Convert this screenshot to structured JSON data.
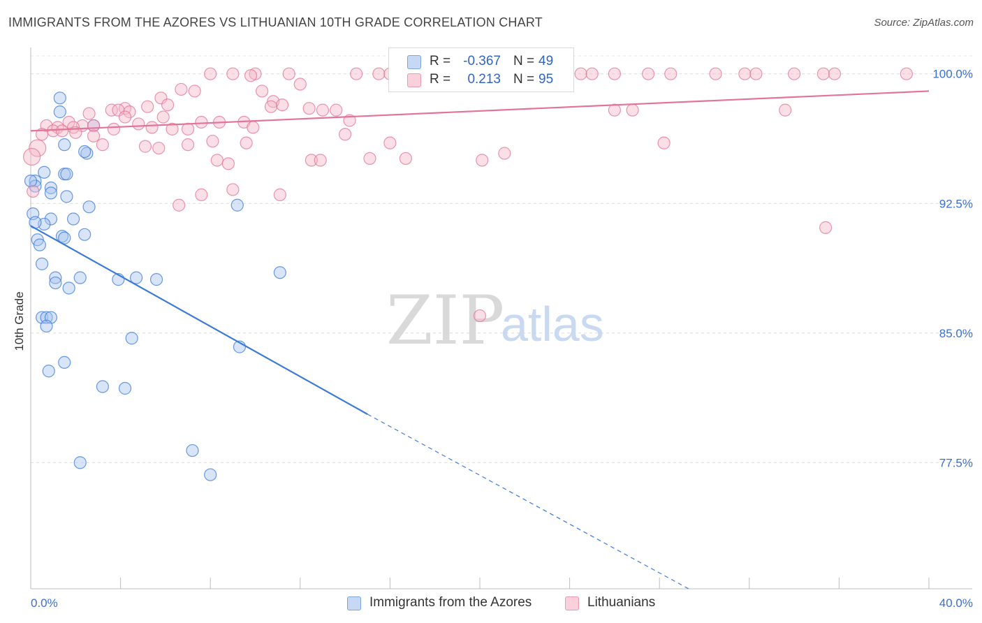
{
  "title": "IMMIGRANTS FROM THE AZORES VS LITHUANIAN 10TH GRADE CORRELATION CHART",
  "source": "Source: ZipAtlas.com",
  "watermark": {
    "zip": "ZIP",
    "atlas": "atlas"
  },
  "legend_top": [
    {
      "r_label": "R =",
      "r_value": "-0.367",
      "n_label": "N =",
      "n_value": "49",
      "color": "#a8c4ee"
    },
    {
      "r_label": "R =",
      "r_value": "0.213",
      "n_label": "N =",
      "n_value": "95",
      "color": "#f5b8ca"
    }
  ],
  "legend_bottom": [
    {
      "label": "Immigrants from the Azores",
      "color": "#a8c4ee"
    },
    {
      "label": "Lithuanians",
      "color": "#f5b8ca"
    }
  ],
  "chart_data": {
    "type": "scatter",
    "title": "IMMIGRANTS FROM THE AZORES VS LITHUANIAN 10TH GRADE CORRELATION CHART",
    "xlabel": "",
    "ylabel": "10th Grade",
    "xlim": [
      0,
      40
    ],
    "ylim": [
      70.2,
      101.2
    ],
    "x_tick_labels": [
      "0.0%",
      "40.0%"
    ],
    "y_tick_labels": [
      "100.0%",
      "92.5%",
      "85.0%",
      "77.5%"
    ],
    "y_ticks": [
      100.0,
      92.5,
      85.0,
      77.5
    ],
    "grid": true,
    "series": [
      {
        "name": "Immigrants from the Azores",
        "color": "#3b7ad8",
        "fill": "#a8c4ee",
        "trend": {
          "x0": 0.0,
          "y0": 91.2,
          "x1": 15.0,
          "y1": 80.3,
          "dash_to_x": 29.3,
          "dash_to_y": 70.2
        },
        "points": [
          [
            1.3,
            98.6
          ],
          [
            1.3,
            97.8
          ],
          [
            2.8,
            97.0
          ],
          [
            1.5,
            95.9
          ],
          [
            2.5,
            95.4
          ],
          [
            2.4,
            95.5
          ],
          [
            0.6,
            94.3
          ],
          [
            1.5,
            94.2
          ],
          [
            1.6,
            94.2
          ],
          [
            0.2,
            93.8
          ],
          [
            0.2,
            93.5
          ],
          [
            0.9,
            93.4
          ],
          [
            0.9,
            93.1
          ],
          [
            1.6,
            92.9
          ],
          [
            2.6,
            92.3
          ],
          [
            9.2,
            92.4
          ],
          [
            0.1,
            91.9
          ],
          [
            0.9,
            91.6
          ],
          [
            1.9,
            91.6
          ],
          [
            0.6,
            91.3
          ],
          [
            0.2,
            91.4
          ],
          [
            2.4,
            90.7
          ],
          [
            1.4,
            90.6
          ],
          [
            1.5,
            90.5
          ],
          [
            0.3,
            90.4
          ],
          [
            0.4,
            90.1
          ],
          [
            0.5,
            89.0
          ],
          [
            3.9,
            88.1
          ],
          [
            4.7,
            88.2
          ],
          [
            5.6,
            88.1
          ],
          [
            2.2,
            88.2
          ],
          [
            1.1,
            88.2
          ],
          [
            1.1,
            87.9
          ],
          [
            1.7,
            87.6
          ],
          [
            11.1,
            88.5
          ],
          [
            0.5,
            85.9
          ],
          [
            0.7,
            85.9
          ],
          [
            0.9,
            85.9
          ],
          [
            0.7,
            85.4
          ],
          [
            4.5,
            84.7
          ],
          [
            9.3,
            84.2
          ],
          [
            1.5,
            83.3
          ],
          [
            0.8,
            82.8
          ],
          [
            3.2,
            81.9
          ],
          [
            4.2,
            81.8
          ],
          [
            7.2,
            78.2
          ],
          [
            2.2,
            77.5
          ],
          [
            8.0,
            76.8
          ],
          [
            0.0,
            93.8
          ]
        ]
      },
      {
        "name": "Lithuanians",
        "color": "#e27399",
        "fill": "#f5b8ca",
        "trend": {
          "x0": 0.0,
          "y0": 96.7,
          "x1": 40.0,
          "y1": 99.0
        },
        "points": [
          [
            8.0,
            100.0
          ],
          [
            9.0,
            100.0
          ],
          [
            10.0,
            100.0
          ],
          [
            11.5,
            100.0
          ],
          [
            14.5,
            100.0
          ],
          [
            15.5,
            100.0
          ],
          [
            16.0,
            100.0
          ],
          [
            17.0,
            100.0
          ],
          [
            18.0,
            100.0
          ],
          [
            19.0,
            100.0
          ],
          [
            22.0,
            100.0
          ],
          [
            23.5,
            100.0
          ],
          [
            24.5,
            100.0
          ],
          [
            25.0,
            100.0
          ],
          [
            26.0,
            100.0
          ],
          [
            27.5,
            100.0
          ],
          [
            28.5,
            100.0
          ],
          [
            30.5,
            100.0
          ],
          [
            31.8,
            100.0
          ],
          [
            32.3,
            100.0
          ],
          [
            34.0,
            100.0
          ],
          [
            35.3,
            100.0
          ],
          [
            35.8,
            100.0
          ],
          [
            39.0,
            100.0
          ],
          [
            9.8,
            99.9
          ],
          [
            12.0,
            99.4
          ],
          [
            6.7,
            99.1
          ],
          [
            7.3,
            99.0
          ],
          [
            10.3,
            99.0
          ],
          [
            5.8,
            98.6
          ],
          [
            10.8,
            98.4
          ],
          [
            11.2,
            98.2
          ],
          [
            6.1,
            98.2
          ],
          [
            5.2,
            98.1
          ],
          [
            4.2,
            98.0
          ],
          [
            10.7,
            98.1
          ],
          [
            3.6,
            97.9
          ],
          [
            3.9,
            97.9
          ],
          [
            4.4,
            97.8
          ],
          [
            2.6,
            97.7
          ],
          [
            12.4,
            98.0
          ],
          [
            13.0,
            97.9
          ],
          [
            13.6,
            97.9
          ],
          [
            26.0,
            97.9
          ],
          [
            26.8,
            97.9
          ],
          [
            33.6,
            97.9
          ],
          [
            4.2,
            97.5
          ],
          [
            5.9,
            97.5
          ],
          [
            14.2,
            97.3
          ],
          [
            8.4,
            97.2
          ],
          [
            9.5,
            97.2
          ],
          [
            7.6,
            97.2
          ],
          [
            4.8,
            97.1
          ],
          [
            1.7,
            97.2
          ],
          [
            2.3,
            97.0
          ],
          [
            1.2,
            96.9
          ],
          [
            2.8,
            97.0
          ],
          [
            1.9,
            96.9
          ],
          [
            0.7,
            97.0
          ],
          [
            3.7,
            96.8
          ],
          [
            1.0,
            96.7
          ],
          [
            1.4,
            96.7
          ],
          [
            2.0,
            96.6
          ],
          [
            9.9,
            96.9
          ],
          [
            5.4,
            96.9
          ],
          [
            6.3,
            96.8
          ],
          [
            7.0,
            96.8
          ],
          [
            0.5,
            96.5
          ],
          [
            2.8,
            96.4
          ],
          [
            14.0,
            96.5
          ],
          [
            8.1,
            96.1
          ],
          [
            3.2,
            95.9
          ],
          [
            5.1,
            95.8
          ],
          [
            5.7,
            95.7
          ],
          [
            7.0,
            95.9
          ],
          [
            9.6,
            96.0
          ],
          [
            16.0,
            96.0
          ],
          [
            28.2,
            96.0
          ],
          [
            0.3,
            95.7
          ],
          [
            21.1,
            95.4
          ],
          [
            20.1,
            95.0
          ],
          [
            12.5,
            95.0
          ],
          [
            12.9,
            95.0
          ],
          [
            15.1,
            95.1
          ],
          [
            16.7,
            95.1
          ],
          [
            8.3,
            95.0
          ],
          [
            8.8,
            94.8
          ],
          [
            9.0,
            93.3
          ],
          [
            7.6,
            93.0
          ],
          [
            11.1,
            93.0
          ],
          [
            6.6,
            92.4
          ],
          [
            0.1,
            93.2
          ],
          [
            35.4,
            91.1
          ],
          [
            20.0,
            86.0
          ],
          [
            0.05,
            95.2
          ]
        ]
      }
    ]
  }
}
